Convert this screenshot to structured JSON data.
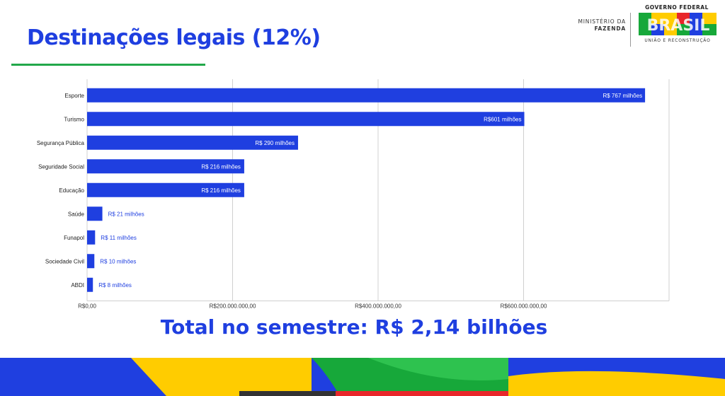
{
  "slide": {
    "title": "Destinações legais (12%)",
    "total": "Total no semestre: R$ 2,14 bilhões"
  },
  "header": {
    "ministry_line1": "MINISTÉRIO DA",
    "ministry_line2": "FAZENDA",
    "gov_line": "GOVERNO FEDERAL",
    "brasil_text": "BRASIL",
    "tagline": "UNIÃO E RECONSTRUÇÃO"
  },
  "colors": {
    "bar": "#1f3fe0",
    "title": "#1f3fe0",
    "accent_green": "#22a84a",
    "footer_blue": "#1f3fe0",
    "footer_yellow": "#ffcc00",
    "footer_green": "#17a83a",
    "footer_red": "#e8262a"
  },
  "chart_data": {
    "type": "bar",
    "orientation": "horizontal",
    "categories": [
      "Esporte",
      "Turismo",
      "Segurança Pública",
      "Seguridade Social",
      "Educação",
      "Saúde",
      "Funapol",
      "Sociedade Civil",
      "ABDI"
    ],
    "values": [
      767000000,
      601000000,
      290000000,
      216000000,
      216000000,
      21000000,
      11000000,
      10000000,
      8000000
    ],
    "data_labels": [
      "R$ 767 milhões",
      "R$601 milhões",
      "R$ 290 milhões",
      "R$ 216 milhões",
      "R$ 216 milhões",
      "R$ 21 milhões",
      "R$ 11 milhões",
      "R$ 10 milhões",
      "R$ 8 milhões"
    ],
    "xlim": [
      0,
      800000000
    ],
    "xticks": [
      0,
      200000000,
      400000000,
      600000000,
      800000000
    ],
    "xtick_labels": [
      "R$0,00",
      "R$200.000.000,00",
      "R$400.000.000,00",
      "R$600.000.000,00",
      ""
    ],
    "grid": true,
    "legend": false
  }
}
